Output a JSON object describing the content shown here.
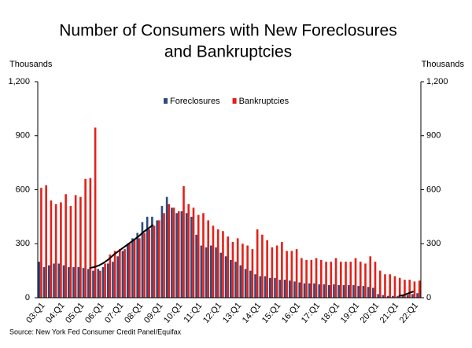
{
  "chart_data": {
    "type": "bar",
    "title": [
      "Number of Consumers with New Foreclosures",
      "and Bankruptcies"
    ],
    "ylabel": "Thousands",
    "y2label": "Thousands",
    "source": "Source: New York Fed Consumer Credit Panel/Equifax",
    "categories": [
      "03:Q1",
      null,
      null,
      null,
      "04:Q1",
      null,
      null,
      null,
      "05:Q1",
      null,
      null,
      null,
      "06:Q1",
      null,
      null,
      null,
      "07:Q1",
      null,
      null,
      null,
      "08:Q1",
      null,
      null,
      null,
      "09:Q1",
      null,
      null,
      null,
      "10:Q1",
      null,
      null,
      null,
      "11:Q1",
      null,
      null,
      null,
      "12:Q1",
      null,
      null,
      null,
      "13:Q1",
      null,
      null,
      null,
      "14:Q1",
      null,
      null,
      null,
      "15:Q1",
      null,
      null,
      null,
      "16:Q1",
      null,
      null,
      null,
      "17:Q1",
      null,
      null,
      null,
      "18:Q1",
      null,
      null,
      null,
      "19:Q1",
      null,
      null,
      null,
      "20:Q1",
      null,
      null,
      null,
      "21:Q1",
      null,
      null,
      null,
      "22:Q1",
      null
    ],
    "series": [
      {
        "name": "Foreclosures",
        "color": "#2e4a7d",
        "values": [
          200,
          170,
          180,
          190,
          190,
          180,
          170,
          170,
          170,
          165,
          160,
          150,
          160,
          170,
          190,
          200,
          230,
          260,
          300,
          330,
          360,
          420,
          450,
          450,
          430,
          510,
          560,
          500,
          470,
          480,
          470,
          450,
          350,
          290,
          280,
          290,
          280,
          250,
          230,
          210,
          200,
          180,
          160,
          150,
          130,
          120,
          120,
          110,
          110,
          100,
          100,
          95,
          90,
          85,
          80,
          80,
          80,
          75,
          75,
          70,
          75,
          70,
          70,
          70,
          70,
          65,
          65,
          60,
          55,
          20,
          15,
          10,
          10,
          10,
          10,
          15,
          20,
          25
        ]
      },
      {
        "name": "Bankruptcies",
        "color": "#e32119",
        "values": [
          610,
          625,
          540,
          520,
          530,
          575,
          510,
          570,
          560,
          660,
          665,
          945,
          150,
          190,
          240,
          260,
          270,
          270,
          300,
          320,
          330,
          360,
          380,
          400,
          430,
          470,
          520,
          500,
          480,
          620,
          520,
          500,
          460,
          470,
          430,
          400,
          380,
          370,
          340,
          310,
          330,
          300,
          290,
          270,
          380,
          350,
          320,
          280,
          290,
          310,
          260,
          260,
          270,
          220,
          210,
          210,
          220,
          210,
          200,
          200,
          220,
          200,
          200,
          200,
          220,
          200,
          190,
          230,
          200,
          150,
          130,
          130,
          120,
          110,
          100,
          100,
          90,
          95
        ]
      },
      {
        "type": "line",
        "color": "#000000",
        "values": [
          null,
          null,
          null,
          null,
          null,
          null,
          null,
          null,
          null,
          null,
          165,
          170,
          180,
          195,
          215,
          240,
          260,
          280,
          300,
          320,
          340,
          365,
          385,
          405,
          null,
          null,
          null,
          null,
          null,
          null,
          null,
          null,
          null,
          null,
          null,
          null,
          null,
          null,
          null,
          null,
          null,
          null,
          null,
          null,
          null,
          null,
          null,
          null,
          null,
          null,
          null,
          null,
          null,
          null,
          null,
          null,
          null,
          null,
          null,
          null,
          null,
          null,
          null,
          null,
          null,
          null,
          null,
          null,
          null,
          null,
          null,
          null,
          null,
          10,
          15,
          25,
          35,
          null
        ]
      }
    ],
    "ylim": [
      0,
      1200
    ],
    "yticks": [
      0,
      300,
      600,
      900,
      {
        "value": 1200,
        "label": "1,200"
      }
    ],
    "y2lim": [
      0,
      1200
    ],
    "y2ticks": [
      0,
      300,
      600,
      900,
      {
        "value": 1200,
        "label": "1,200"
      }
    ],
    "legend": "top"
  }
}
